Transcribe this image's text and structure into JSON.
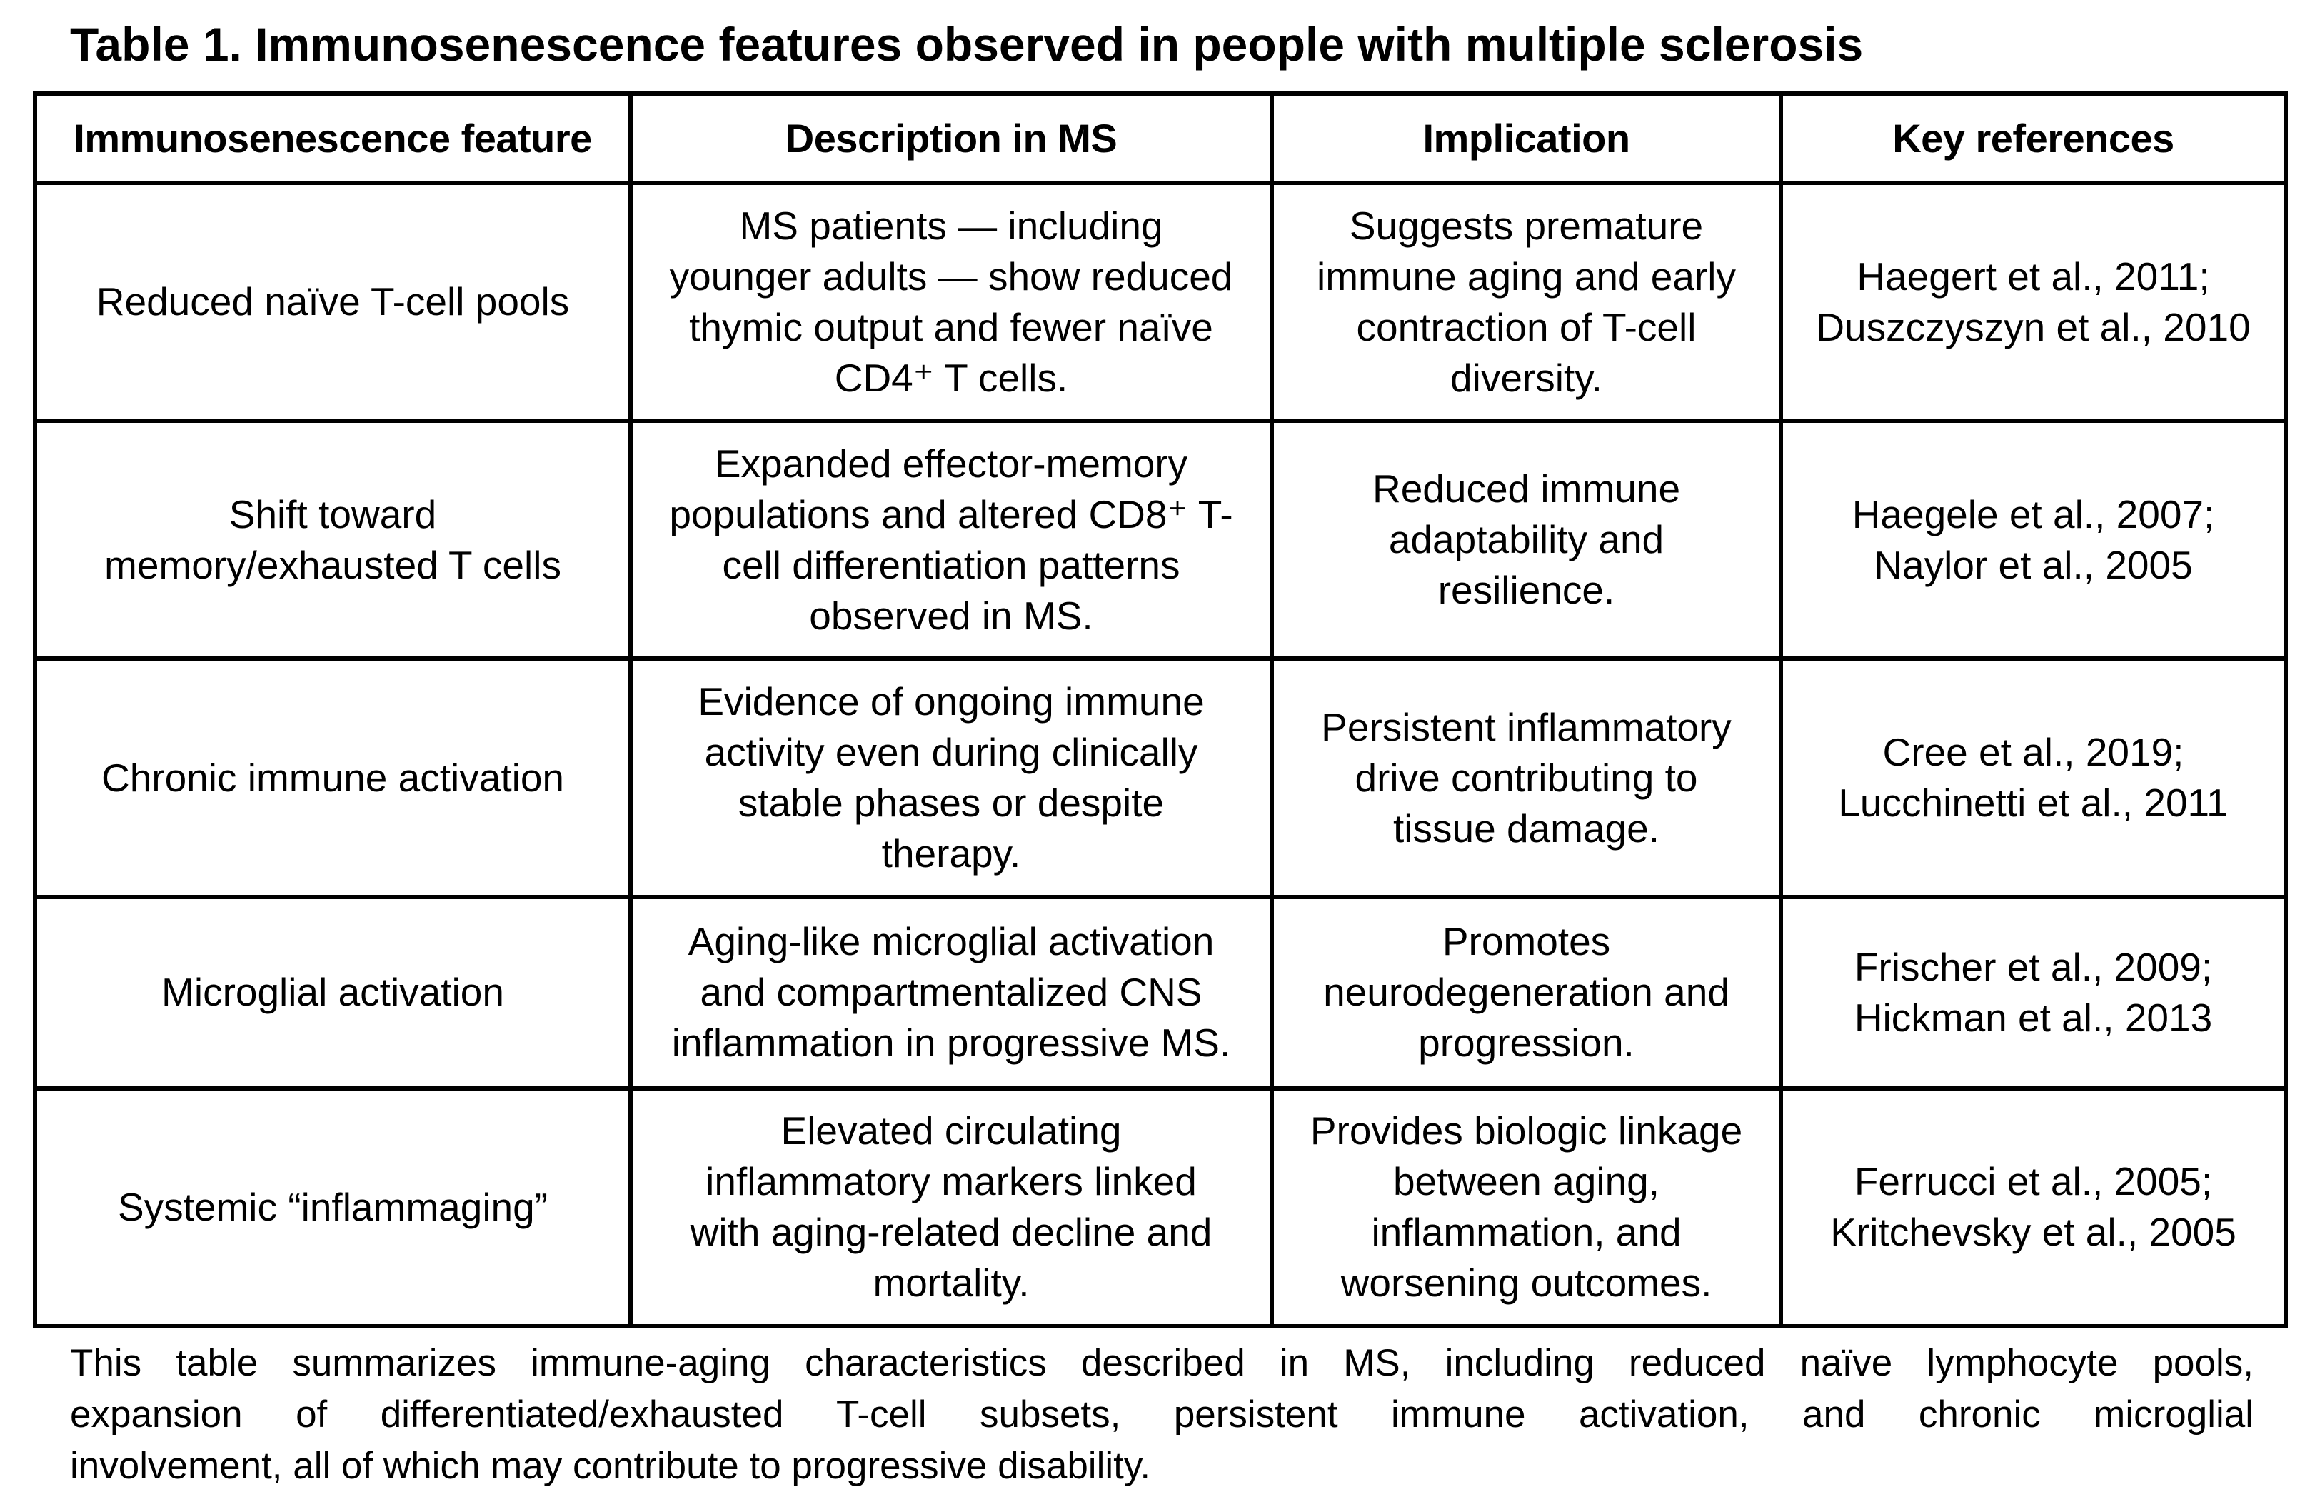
{
  "title": "Table 1. Immunosenescence features observed in people with multiple sclerosis",
  "table": {
    "headers": [
      "Immunosenescence feature",
      "Description in MS",
      "Implication",
      "Key references"
    ],
    "rows": [
      {
        "feature": [
          "Reduced naïve T-cell pools"
        ],
        "description": [
          "MS patients — including",
          "younger adults — show reduced",
          "thymic output and fewer naïve",
          "CD4⁺ T cells."
        ],
        "implication": [
          "Suggests premature",
          "immune aging and early",
          "contraction of T-cell",
          "diversity."
        ],
        "references": [
          "Haegert et al., 2011;",
          "Duszczyszyn et al., 2010"
        ]
      },
      {
        "feature": [
          "Shift toward",
          "memory/exhausted T cells"
        ],
        "description": [
          "Expanded effector-memory",
          "populations and altered CD8⁺ T-",
          "cell differentiation patterns",
          "observed in MS."
        ],
        "implication": [
          "Reduced immune",
          "adaptability and",
          "resilience."
        ],
        "references": [
          "Haegele et al., 2007;",
          "Naylor et al., 2005"
        ]
      },
      {
        "feature": [
          "Chronic immune activation"
        ],
        "description": [
          "Evidence of ongoing immune",
          "activity even during clinically",
          "stable phases or despite",
          "therapy."
        ],
        "implication": [
          "Persistent inflammatory",
          "drive contributing to",
          "tissue damage."
        ],
        "references": [
          "Cree et al., 2019;",
          "Lucchinetti et al., 2011"
        ]
      },
      {
        "feature": [
          "Microglial activation"
        ],
        "description": [
          "Aging-like microglial activation",
          "and compartmentalized CNS",
          "inflammation in progressive MS."
        ],
        "implication": [
          "Promotes",
          "neurodegeneration and",
          "progression."
        ],
        "references": [
          "Frischer et al., 2009;",
          "Hickman et al., 2013"
        ]
      },
      {
        "feature": [
          "Systemic “inflammaging”"
        ],
        "description": [
          "Elevated circulating",
          "inflammatory markers linked",
          "with aging-related decline and",
          "mortality."
        ],
        "implication": [
          "Provides biologic linkage",
          "between aging,",
          "inflammation, and",
          "worsening outcomes."
        ],
        "references": [
          "Ferrucci et al., 2005;",
          "Kritchevsky et al., 2005"
        ]
      }
    ]
  },
  "caption": [
    "This table summarizes immune-aging characteristics described in MS, including reduced naïve lymphocyte pools,",
    "expansion of differentiated/exhausted T-cell subsets, persistent immune activation, and chronic microglial",
    "involvement, all of which may contribute to progressive disability."
  ]
}
